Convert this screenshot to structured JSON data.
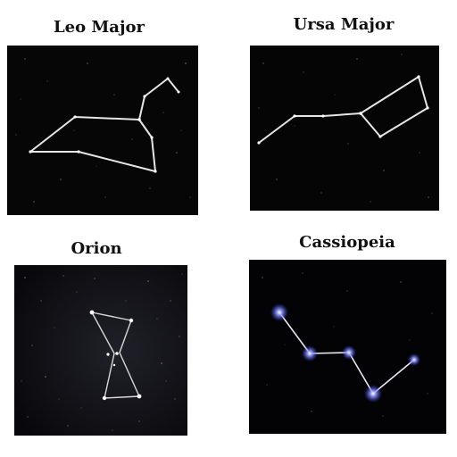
{
  "panels": {
    "leo_major": {
      "title": "Leo Major"
    },
    "ursa_major": {
      "title": "Ursa Major"
    },
    "orion": {
      "title": "Orion"
    },
    "cassiopeia": {
      "title": "Cassiopeia"
    }
  },
  "colors": {
    "background": "#ffffff",
    "sky": "#050505",
    "line": "#e6e6e6",
    "cassiopeia_star": "#6f78ff"
  }
}
